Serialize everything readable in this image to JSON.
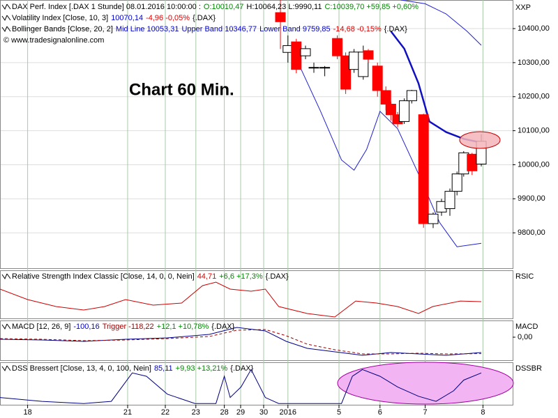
{
  "chart_data": [
    {
      "type": "candlestick",
      "legend_lines": [
        [
          {
            "text": "DAX Perf. Index [.DAX  1 Stunde] 08.01.2016 10:00:00 :",
            "color": "#000000"
          },
          {
            "text": "O:10010,47",
            "color": "#008800"
          },
          {
            "text": "H:10064,23 L:9990,11",
            "color": "#000000"
          },
          {
            "text": "C:10039,70 +59,85 +0,60%",
            "color": "#008800"
          }
        ],
        [
          {
            "text": "Volatility Index [Close, 10, 3]",
            "color": "#000000"
          },
          {
            "text": "10070,14",
            "color": "#0000cc"
          },
          {
            "text": "-4,96 -0,05%",
            "color": "#dd0000"
          },
          {
            "text": "{.DAX}",
            "color": "#000000"
          }
        ],
        [
          {
            "text": "Bollinger Bands [Close, 20, 2]",
            "color": "#000000"
          },
          {
            "text": "Mid Line 10053,31",
            "color": "#0000cc"
          },
          {
            "text": "Upper Band 10346,77",
            "color": "#0000cc"
          },
          {
            "text": "Lower Band 9759,85",
            "color": "#0000cc"
          },
          {
            "text": "-14,68 -0,15%",
            "color": "#dd0000"
          },
          {
            "text": "{.DAX}",
            "color": "#000000"
          }
        ],
        [
          {
            "text": "© www.tradesignalonline.com",
            "color": "#000000"
          }
        ]
      ],
      "annotation": "Chart 60 Min.",
      "y_label": "XXP",
      "xlim": [
        0,
        61.25
      ],
      "ylim": [
        9696,
        10484
      ],
      "yticks": [
        {
          "value": 9800,
          "label": "9800,00"
        },
        {
          "value": 9900,
          "label": "9900,00"
        },
        {
          "value": 10000,
          "label": "10000,00"
        },
        {
          "value": 10100,
          "label": "10100,00"
        },
        {
          "value": 10200,
          "label": "10200,00"
        },
        {
          "value": 10300,
          "label": "10300,00"
        },
        {
          "value": 10400,
          "label": "10400,00"
        }
      ],
      "grid": true,
      "up_color": "#ffffff",
      "down_color": "#ff0000",
      "x": [
        33.5,
        34.4,
        35.4,
        36.5,
        37.5,
        38.8,
        40.3,
        41.3,
        42.3,
        43.4,
        44,
        45.1,
        46.1,
        46.7,
        47.5,
        48.3,
        49.2,
        50.6,
        51.75,
        52.75,
        53.75,
        54.6,
        55.4,
        56.4,
        57.5
      ],
      "open": [
        10447,
        10330,
        10361,
        10320,
        10284,
        10284,
        10371,
        10320,
        10280,
        10259,
        10335,
        10290,
        10218,
        10178,
        10147,
        10127,
        10188,
        10147,
        9827,
        9861,
        9871,
        9922,
        9973,
        10031,
        10002
      ],
      "high": [
        10484,
        10380,
        10370,
        10350,
        10300,
        10290,
        10380,
        10330,
        10340,
        10350,
        10340,
        10300,
        10230,
        10185,
        10155,
        10195,
        10220,
        10150,
        9860,
        9900,
        9930,
        9980,
        10040,
        10035,
        10090
      ],
      "low": [
        10340,
        10300,
        10269,
        10310,
        10270,
        10260,
        10310,
        10208,
        10270,
        10250,
        10300,
        10200,
        10160,
        10130,
        10110,
        10120,
        10180,
        9815,
        9814,
        9850,
        9850,
        9910,
        9965,
        9970,
        9995
      ],
      "close": [
        10420,
        10350,
        10280,
        10341,
        10286,
        10286,
        10320,
        10222,
        10331,
        10331,
        10310,
        10218,
        10178,
        10147,
        10120,
        10188,
        10218,
        9827,
        9855,
        9892,
        9922,
        9973,
        10035,
        9982,
        10069
      ],
      "series": [
        {
          "color": "#2020d0",
          "width": 1,
          "x": [
            47.9,
            50.8,
            53.3,
            55.8,
            57.5
          ],
          "values": [
            10484,
            10473,
            10443,
            10392,
            10351
          ]
        },
        {
          "color": "#1010c0",
          "width": 2.5,
          "x": [
            46.7,
            48.3,
            50,
            51.3,
            53.3,
            55.4,
            57.5
          ],
          "values": [
            10392,
            10341,
            10239,
            10127,
            10096,
            10076,
            10065
          ]
        },
        {
          "color": "#2020d0",
          "width": 1,
          "x": [
            35.8,
            38.3,
            40.8,
            42.3,
            43.8,
            45.4,
            47.5,
            50,
            52.5,
            54.6,
            57.5
          ],
          "values": [
            10290,
            10157,
            10014,
            9984,
            10045,
            10157,
            10106,
            9973,
            9831,
            9759,
            9769
          ]
        }
      ]
    },
    {
      "type": "line",
      "legend_lines": [
        [
          {
            "text": "Relative Strength Index Classic [Close, 14, 0, 0, Nein]",
            "color": "#000000"
          },
          {
            "text": "44,71",
            "color": "#dd0000"
          },
          {
            "text": "+6,6 +17,3%",
            "color": "#008800"
          },
          {
            "text": "{.DAX}",
            "color": "#000000"
          }
        ]
      ],
      "y_label": "RSIC",
      "xlim": [
        0,
        61.25
      ],
      "ylim": [
        20,
        85
      ],
      "series": [
        {
          "color": "#cc0000",
          "width": 1,
          "x": [
            0,
            3.3,
            6.7,
            10,
            12.5,
            15,
            18.3,
            21.7,
            24.2,
            25.8,
            27.5,
            30,
            31.7,
            33.3,
            36.7,
            40,
            42.5,
            45,
            47.5,
            50,
            51.7,
            55,
            57.5
          ],
          "values": [
            59.6,
            45.4,
            36,
            31.3,
            36,
            45.4,
            37.9,
            40.7,
            64.3,
            69,
            59.6,
            56.7,
            59.6,
            36,
            26.6,
            21.9,
            43.5,
            40.7,
            36,
            26.6,
            36,
            43.5,
            42.6
          ]
        }
      ]
    },
    {
      "type": "line",
      "legend_lines": [
        [
          {
            "text": "MACD [12, 26, 9]",
            "color": "#000000"
          },
          {
            "text": "-100,16",
            "color": "#0000cc"
          },
          {
            "text": "Trigger -118,22",
            "color": "#990000"
          },
          {
            "text": "+12,1 +10,78%",
            "color": "#008800"
          },
          {
            "text": "{.DAX}",
            "color": "#000000"
          }
        ]
      ],
      "y_label": "MACD",
      "xlim": [
        0,
        61.25
      ],
      "ylim": [
        -165,
        120
      ],
      "yticks": [
        {
          "value": 0,
          "label": "0,00"
        }
      ],
      "series": [
        {
          "color": "#00008b",
          "width": 1,
          "x": [
            0,
            5,
            10,
            15,
            20,
            25,
            28.3,
            31.7,
            34.2,
            36.7,
            40,
            43.3,
            46.7,
            50,
            53.3,
            57.5
          ],
          "values": [
            -15,
            -20,
            -30,
            -15,
            -5,
            20,
            70,
            45,
            -30,
            -80,
            -105,
            -130,
            -110,
            -120,
            -130,
            -110
          ]
        },
        {
          "color": "#990000",
          "width": 1,
          "dash": true,
          "x": [
            0,
            5,
            10,
            15,
            20,
            25,
            28.3,
            31.7,
            34.2,
            36.7,
            40,
            43.3,
            46.7,
            50,
            53.3,
            57.5
          ],
          "values": [
            -10,
            -15,
            -25,
            -20,
            -10,
            5,
            50,
            55,
            10,
            -50,
            -90,
            -120,
            -120,
            -115,
            -120,
            -118
          ]
        }
      ]
    },
    {
      "type": "line",
      "legend_lines": [
        [
          {
            "text": "DSS Bressert [Close, 13, 4, 0, 100, Nein]",
            "color": "#000000"
          },
          {
            "text": "85,11",
            "color": "#0000cc"
          },
          {
            "text": "+9,93 +13,21%",
            "color": "#008800"
          },
          {
            "text": "{.DAX}",
            "color": "#000000"
          }
        ]
      ],
      "y_label": "DSSBR",
      "xlim": [
        0,
        61.25
      ],
      "ylim": [
        0,
        100
      ],
      "xticks": [
        {
          "value": 3.3,
          "label": "18"
        },
        {
          "value": 15.25,
          "label": "21"
        },
        {
          "value": 19.75,
          "label": "22"
        },
        {
          "value": 23.4,
          "label": "23"
        },
        {
          "value": 26.8,
          "label": "28"
        },
        {
          "value": 28.75,
          "label": "29"
        },
        {
          "value": 31.5,
          "label": "30"
        },
        {
          "value": 34.4,
          "label": "2016"
        },
        {
          "value": 40.5,
          "label": "5"
        },
        {
          "value": 45.4,
          "label": "6"
        },
        {
          "value": 50.8,
          "label": "7"
        },
        {
          "value": 57.7,
          "label": "8"
        }
      ],
      "series": [
        {
          "color": "#000080",
          "width": 1,
          "x": [
            0,
            5,
            10,
            13.3,
            15.8,
            17.5,
            20,
            23.3,
            25.8,
            26.8,
            27.5,
            28.8,
            30,
            31.7,
            33.3,
            36.7,
            40.8,
            42.1,
            43.3,
            45.4,
            47.5,
            50,
            52.1,
            54.2,
            55.4,
            57.5
          ],
          "values": [
            17,
            8,
            3,
            8,
            75,
            67,
            25,
            3,
            3,
            67,
            17,
            42,
            83,
            17,
            3,
            3,
            3,
            67,
            83,
            67,
            42,
            20,
            8,
            33,
            58,
            75
          ]
        }
      ]
    }
  ]
}
